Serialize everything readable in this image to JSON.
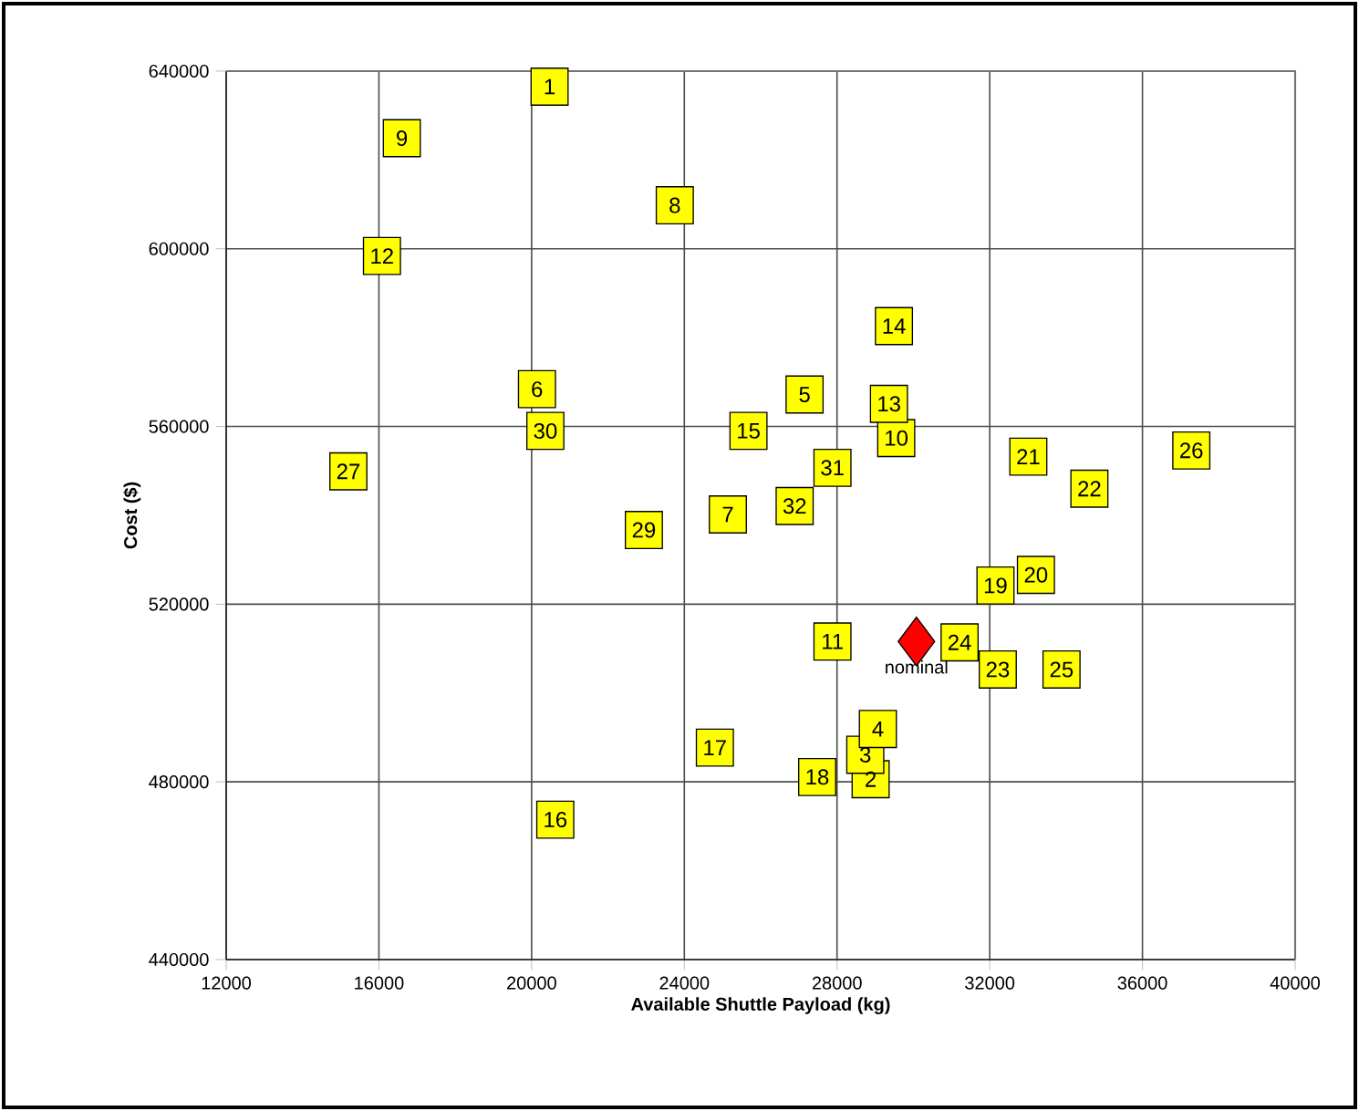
{
  "chart_data": {
    "type": "scatter",
    "xlabel": "Available Shuttle Payload (kg)",
    "ylabel": "Cost ($)",
    "xlim": [
      12000,
      40000
    ],
    "ylim": [
      440000,
      640000
    ],
    "xticks": [
      12000,
      16000,
      20000,
      24000,
      28000,
      32000,
      36000,
      40000
    ],
    "yticks": [
      440000,
      480000,
      520000,
      560000,
      600000,
      640000
    ],
    "grid": true,
    "series": [
      {
        "color": "#ffff00",
        "marker": "square",
        "x": [
          20470,
          28880,
          28740,
          29070,
          27150,
          20140,
          25140,
          23750,
          16600,
          29550,
          27880,
          16080,
          29360,
          29490,
          25680,
          20620,
          24800,
          27480,
          32150,
          33210,
          33010,
          34610,
          32210,
          31210,
          33880,
          37280,
          15200,
          22940,
          20360,
          27880,
          26890
        ],
        "values": [
          636500,
          480600,
          486100,
          491900,
          567200,
          568400,
          540200,
          609800,
          624900,
          557400,
          511600,
          598400,
          565100,
          582600,
          559000,
          471500,
          487700,
          481100,
          524200,
          526600,
          553200,
          546000,
          505300,
          511400,
          505300,
          554600,
          549900,
          536700,
          559000,
          550700,
          542100
        ]
      },
      {
        "name": "nominal",
        "color": "#ff0000",
        "marker": "diamond",
        "x": [
          30080
        ],
        "values": [
          511600
        ]
      }
    ],
    "annotations": [
      {
        "text": "1",
        "x": 20470,
        "y": 636500
      },
      {
        "text": "2",
        "x": 28880,
        "y": 480600
      },
      {
        "text": "3",
        "x": 28740,
        "y": 486100
      },
      {
        "text": "4",
        "x": 29070,
        "y": 491900
      },
      {
        "text": "5",
        "x": 27150,
        "y": 567200
      },
      {
        "text": "6",
        "x": 20140,
        "y": 568400
      },
      {
        "text": "7",
        "x": 25140,
        "y": 540200
      },
      {
        "text": "8",
        "x": 23750,
        "y": 609800
      },
      {
        "text": "9",
        "x": 16600,
        "y": 624900
      },
      {
        "text": "10",
        "x": 29550,
        "y": 557400
      },
      {
        "text": "11",
        "x": 27880,
        "y": 511600
      },
      {
        "text": "12",
        "x": 16080,
        "y": 598400
      },
      {
        "text": "13",
        "x": 29360,
        "y": 565100
      },
      {
        "text": "14",
        "x": 29490,
        "y": 582600
      },
      {
        "text": "15",
        "x": 25680,
        "y": 559000
      },
      {
        "text": "16",
        "x": 20620,
        "y": 471500
      },
      {
        "text": "17",
        "x": 24800,
        "y": 487700
      },
      {
        "text": "18",
        "x": 27480,
        "y": 481100
      },
      {
        "text": "19",
        "x": 32150,
        "y": 524200
      },
      {
        "text": "20",
        "x": 33210,
        "y": 526600
      },
      {
        "text": "21",
        "x": 33010,
        "y": 553200
      },
      {
        "text": "22",
        "x": 34610,
        "y": 546000
      },
      {
        "text": "23",
        "x": 32210,
        "y": 505300
      },
      {
        "text": "24",
        "x": 31210,
        "y": 511400
      },
      {
        "text": "25",
        "x": 33880,
        "y": 505300
      },
      {
        "text": "26",
        "x": 37280,
        "y": 554600
      },
      {
        "text": "27",
        "x": 15200,
        "y": 549900
      },
      {
        "text": "29",
        "x": 22940,
        "y": 536700
      },
      {
        "text": "30",
        "x": 20360,
        "y": 559000
      },
      {
        "text": "31",
        "x": 27880,
        "y": 550700
      },
      {
        "text": "32",
        "x": 26890,
        "y": 542100
      }
    ]
  }
}
